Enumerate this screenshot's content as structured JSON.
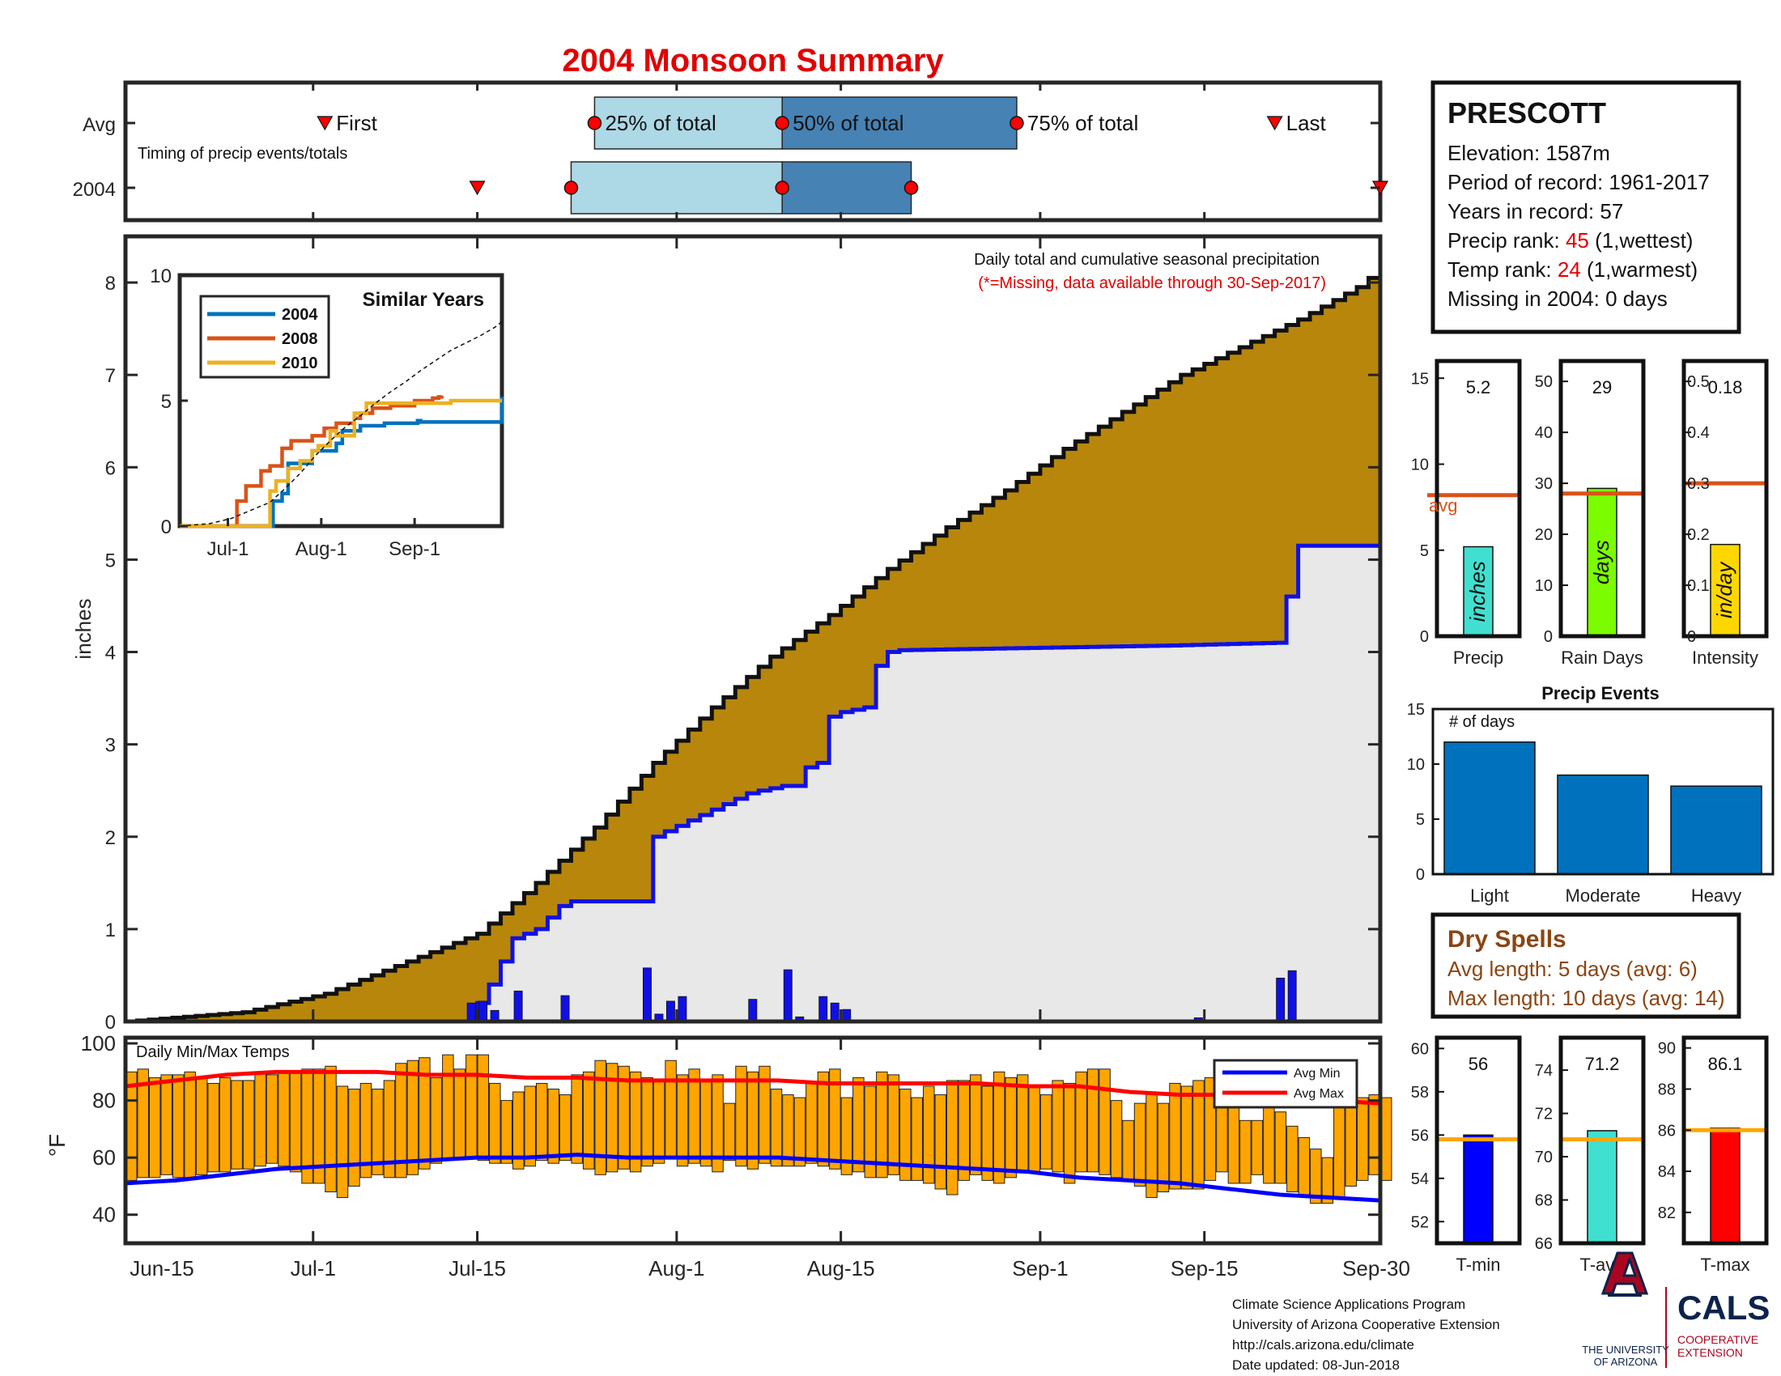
{
  "title": "2004 Monsoon Summary",
  "timing": {
    "row_avg": "Avg",
    "row_year": "2004",
    "caption": "Timing of precip events/totals",
    "first_label": "First",
    "last_label": "Last",
    "p25_label": "25% of total",
    "p50_label": "50% of total",
    "p75_label": "75% of total",
    "avg": {
      "first": 17,
      "p25": 40,
      "p50": 56,
      "p75": 76,
      "last": 98
    },
    "year": {
      "first": 30,
      "p25": 38,
      "p50": 56,
      "p75": 67,
      "last": 107
    }
  },
  "station": {
    "name": "PRESCOTT",
    "elevation": "Elevation: 1587m",
    "period": "Period of record: 1961-2017",
    "years": "Years in record: 57",
    "precip_rank_prefix": "Precip rank: ",
    "precip_rank_value": "45",
    "precip_rank_suffix": " (1,wettest)",
    "temp_rank_prefix": "Temp rank: ",
    "temp_rank_value": "24",
    "temp_rank_suffix": " (1,warmest)",
    "missing": "Missing in 2004: 0 days"
  },
  "main_chart": {
    "note1": "Daily total and cumulative seasonal precipitation",
    "note2": "(*=Missing, data available through 30-Sep-2017)",
    "ylabel": "inches",
    "yticks": [
      "0",
      "1",
      "2",
      "3",
      "4",
      "5",
      "6",
      "7",
      "8"
    ],
    "xticks": [
      "Jun-15",
      "Jul-1",
      "Jul-15",
      "Aug-1",
      "Aug-15",
      "Sep-1",
      "Sep-15",
      "Sep-30"
    ],
    "colors": {
      "avg_fill": "#b8860b",
      "year_fill": "#e8e8e8",
      "year_line": "#1010e6",
      "bars": "#1010e6"
    }
  },
  "chart_data": [
    {
      "type": "area",
      "name": "cumulative precipitation",
      "x_start": "Jun-15",
      "x_end": "Sep-30",
      "ylim": [
        0,
        8.5
      ],
      "avg_cumulative": {
        "day": [
          0,
          10,
          17,
          23,
          30,
          35,
          40,
          45,
          50,
          55,
          60,
          65,
          70,
          75,
          80,
          85,
          90,
          95,
          100,
          105,
          107
        ],
        "value": [
          0,
          0.1,
          0.3,
          0.6,
          0.95,
          1.5,
          2.1,
          2.8,
          3.4,
          3.95,
          4.4,
          4.9,
          5.35,
          5.75,
          6.2,
          6.6,
          7.0,
          7.3,
          7.6,
          7.95,
          8.15
        ]
      },
      "year_cumulative": {
        "day": [
          0,
          29,
          30,
          31,
          33,
          35,
          37,
          38,
          39,
          40,
          44,
          45,
          53,
          54,
          56,
          57,
          58,
          59,
          60,
          61,
          63,
          64,
          65,
          66,
          89,
          98,
          99,
          100,
          107
        ],
        "value": [
          0,
          0,
          0.2,
          0.4,
          0.9,
          1.0,
          1.25,
          1.3,
          1.3,
          1.3,
          1.3,
          2.0,
          2.47,
          2.5,
          2.55,
          2.55,
          2.75,
          2.8,
          3.3,
          3.35,
          3.4,
          3.85,
          4.0,
          4.02,
          4.07,
          4.1,
          4.6,
          5.15,
          5.15
        ]
      },
      "daily_bars": {
        "day": [
          29,
          30,
          31,
          33,
          37,
          44,
          45,
          46,
          47,
          53,
          56,
          57,
          59,
          60,
          61,
          91,
          98,
          99
        ],
        "value": [
          0.2,
          0.22,
          0.12,
          0.33,
          0.28,
          0.58,
          0.08,
          0.22,
          0.27,
          0.24,
          0.56,
          0.05,
          0.27,
          0.2,
          0.13,
          0.04,
          0.47,
          0.55
        ]
      }
    },
    {
      "type": "line",
      "name": "Similar Years",
      "title": "Similar Years",
      "xticks": [
        "Jul-1",
        "Aug-1",
        "Sep-1"
      ],
      "ylim": [
        0,
        10
      ],
      "yticks": [
        "0",
        "5",
        "10"
      ],
      "series": [
        {
          "name": "2004",
          "color": "#0072bd",
          "day": [
            0,
            29,
            31,
            34,
            36,
            42,
            44,
            52,
            54,
            60,
            61,
            68,
            70,
            78,
            79,
            80,
            107
          ],
          "value": [
            0,
            0,
            1,
            1.3,
            2.5,
            2.5,
            3.0,
            3.3,
            3.8,
            4,
            4,
            4.1,
            4.1,
            4.1,
            4.2,
            4.15,
            5.15
          ]
        },
        {
          "name": "2008",
          "color": "#d95319",
          "day": [
            0,
            17,
            19,
            22,
            27,
            30,
            34,
            37,
            44,
            48,
            52,
            58,
            60,
            64,
            70,
            78,
            84,
            86,
            87
          ],
          "value": [
            0,
            0,
            1,
            1.6,
            2.2,
            2.4,
            3.1,
            3.4,
            3.6,
            3.9,
            4.1,
            4.3,
            4.5,
            4.7,
            4.8,
            5.0,
            5.1,
            5.15,
            5.2
          ]
        },
        {
          "name": "2010",
          "color": "#edb120",
          "day": [
            0,
            25,
            30,
            32,
            36,
            40,
            44,
            46,
            50,
            52,
            58,
            62,
            70,
            80,
            90,
            107
          ],
          "value": [
            0,
            0,
            1.4,
            1.8,
            2.3,
            2.6,
            3.0,
            3.2,
            3.8,
            3.6,
            4.5,
            4.9,
            4.9,
            4.9,
            5.0,
            5.0
          ]
        },
        {
          "name": "avg",
          "color": "#000000",
          "day": [
            0,
            10,
            17,
            23,
            30,
            35,
            40,
            45,
            50,
            55,
            60,
            65,
            70,
            75,
            80,
            85,
            90,
            95,
            100,
            105,
            107
          ],
          "value": [
            0,
            0.1,
            0.3,
            0.6,
            0.95,
            1.5,
            2.1,
            2.8,
            3.4,
            3.95,
            4.4,
            4.9,
            5.35,
            5.75,
            6.2,
            6.6,
            7.0,
            7.3,
            7.6,
            7.95,
            8.15
          ]
        }
      ]
    },
    {
      "type": "bar",
      "name": "summary bars",
      "panels": [
        {
          "label": "Precip",
          "value": 5.2,
          "value_label": "5.2",
          "avg": 8.2,
          "ylim": [
            0,
            16
          ],
          "yticks": [
            "0",
            "5",
            "10",
            "15"
          ],
          "color": "#40e0d0",
          "unit": "inches"
        },
        {
          "label": "Rain Days",
          "value": 29,
          "value_label": "29",
          "avg": 28,
          "ylim": [
            0,
            54
          ],
          "yticks": [
            "0",
            "10",
            "20",
            "30",
            "40",
            "50"
          ],
          "color": "#7cfc00",
          "unit": "days"
        },
        {
          "label": "Intensity",
          "value": 0.18,
          "value_label": "0.18",
          "avg": 0.3,
          "ylim": [
            0,
            0.54
          ],
          "yticks": [
            "0",
            "0.1",
            "0.2",
            "0.3",
            "0.4",
            "0.5"
          ],
          "color": "#ffd700",
          "unit": "in/day"
        }
      ],
      "avg_label": "avg",
      "avg_color": "#d95319"
    },
    {
      "type": "bar",
      "name": "Precip Events",
      "title": "Precip Events",
      "annotation": "# of days",
      "categories": [
        "Light",
        "Moderate",
        "Heavy"
      ],
      "values": [
        12,
        9,
        8
      ],
      "ylim": [
        0,
        15
      ],
      "yticks": [
        "0",
        "5",
        "10",
        "15"
      ],
      "color": "#0072bd"
    },
    {
      "type": "bar",
      "name": "Daily Min/Max Temps",
      "title": "Daily Min/Max Temps",
      "ylabel": "°F",
      "ylim": [
        30,
        102
      ],
      "yticks": [
        "40",
        "60",
        "80",
        "100"
      ],
      "legend": [
        "Avg Min",
        "Avg Max"
      ],
      "legend_placement": "top-right",
      "daily_max": [
        90,
        91,
        88,
        89,
        89,
        90,
        88,
        86,
        88,
        87,
        87,
        90,
        89,
        90,
        90,
        91,
        91,
        92,
        85,
        84,
        86,
        84,
        87,
        93,
        94,
        95,
        88,
        96,
        91,
        96,
        96,
        86,
        80,
        83,
        85,
        86,
        84,
        82,
        89,
        90,
        94,
        93,
        92,
        90,
        88,
        87,
        94,
        89,
        91,
        87,
        89,
        79,
        92,
        90,
        92,
        84,
        82,
        81,
        86,
        90,
        91,
        81,
        88,
        85,
        90,
        89,
        84,
        81,
        85,
        82,
        87,
        87,
        89,
        85,
        90,
        88,
        89,
        85,
        82,
        87,
        86,
        90,
        91,
        91,
        80,
        73,
        79,
        83,
        79,
        86,
        85,
        87,
        88,
        79,
        82,
        73,
        73,
        86,
        76,
        71,
        67,
        63,
        60,
        80,
        80,
        81,
        82,
        81
      ],
      "daily_min": [
        52,
        53,
        53,
        54,
        53,
        53,
        54,
        55,
        55,
        56,
        56,
        57,
        58,
        57,
        55,
        51,
        51,
        48,
        46,
        50,
        53,
        54,
        53,
        53,
        54,
        56,
        58,
        59,
        60,
        60,
        59,
        58,
        58,
        56,
        57,
        59,
        58,
        59,
        58,
        56,
        54,
        55,
        56,
        55,
        57,
        58,
        60,
        57,
        58,
        57,
        55,
        59,
        57,
        56,
        58,
        57,
        57,
        57,
        58,
        57,
        56,
        54,
        55,
        53,
        53,
        54,
        52,
        52,
        51,
        49,
        47,
        52,
        54,
        52,
        51,
        53,
        55,
        55,
        56,
        55,
        51,
        55,
        55,
        54,
        53,
        52,
        50,
        46,
        48,
        49,
        49,
        49,
        52,
        55,
        51,
        51,
        54,
        51,
        51,
        48,
        47,
        44,
        44,
        46,
        50,
        52,
        54,
        52
      ],
      "avg_min": [
        51,
        52,
        54,
        56,
        57,
        58,
        59,
        60,
        60,
        61,
        60,
        60,
        60,
        60,
        59,
        58,
        57,
        56,
        55,
        53,
        52,
        51,
        49,
        47,
        46,
        45
      ],
      "avg_max": [
        85,
        87,
        89,
        90,
        90,
        90,
        89,
        89,
        88,
        88,
        87,
        87,
        87,
        87,
        86,
        86,
        86,
        86,
        85,
        85,
        83,
        82,
        82,
        81,
        80,
        79
      ]
    },
    {
      "type": "bar",
      "name": "temperature summary",
      "panels": [
        {
          "label": "T-min",
          "value": 56,
          "value_label": "56",
          "avg": 55.8,
          "ylim": [
            51,
            60.5
          ],
          "yticks": [
            "52",
            "54",
            "56",
            "58",
            "60"
          ],
          "color": "#0000ff"
        },
        {
          "label": "T-avg",
          "value": 71.2,
          "value_label": "71.2",
          "avg": 70.8,
          "ylim": [
            66,
            75.5
          ],
          "yticks": [
            "66",
            "68",
            "70",
            "72",
            "74"
          ],
          "color": "#40e0d0"
        },
        {
          "label": "T-max",
          "value": 86.1,
          "value_label": "86.1",
          "avg": 86.0,
          "ylim": [
            80.5,
            90.5
          ],
          "yticks": [
            "82",
            "84",
            "86",
            "88",
            "90"
          ],
          "color": "#ff0000"
        }
      ],
      "avg_color": "#ffa500"
    }
  ],
  "dry_spells": {
    "title": "Dry Spells",
    "avg_length": "Avg length: 5 days (avg: 6)",
    "max_length": "Max length: 10 days (avg: 14)"
  },
  "footer": {
    "line1": "Climate Science Applications Program",
    "line2": "University of Arizona Cooperative Extension",
    "line3": "http://cals.arizona.edu/climate",
    "line4": " Date updated: 08-Jun-2018",
    "ua_name1": "THE UNIVERSITY",
    "ua_name2": "OF ARIZONA",
    "cals": "CALS",
    "cals_sub1": "COOPERATIVE",
    "cals_sub2": "EXTENSION"
  }
}
